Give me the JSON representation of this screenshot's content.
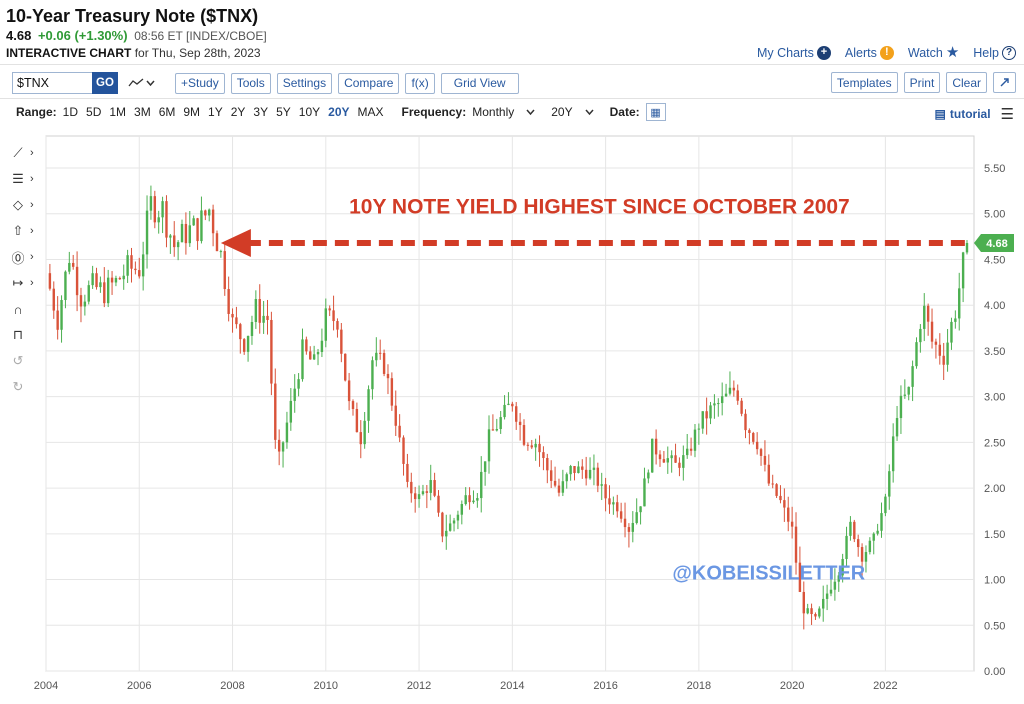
{
  "header": {
    "title": "10-Year Treasury Note ($TNX)",
    "last": "4.68",
    "change": "+0.06 (+1.30%)",
    "time_exchange": "08:56 ET [INDEX/CBOE]",
    "chart_label": "INTERACTIVE CHART",
    "chart_date": "for Thu, Sep 28th, 2023"
  },
  "top_links": {
    "my_charts": "My Charts",
    "alerts": "Alerts",
    "watch": "Watch",
    "help": "Help"
  },
  "toolbar": {
    "symbol": "$TNX",
    "go": "GO",
    "study": "+Study",
    "tools": "Tools",
    "settings": "Settings",
    "compare": "Compare",
    "fx": "f(x)",
    "grid_view": "Grid View",
    "templates": "Templates",
    "print": "Print",
    "clear": "Clear"
  },
  "rangebar": {
    "range_label": "Range:",
    "ranges": [
      "1D",
      "5D",
      "1M",
      "3M",
      "6M",
      "9M",
      "1Y",
      "2Y",
      "3Y",
      "5Y",
      "10Y",
      "20Y",
      "MAX"
    ],
    "active_range": "20Y",
    "frequency_label": "Frequency:",
    "frequency": "Monthly",
    "period": "20Y",
    "date_label": "Date:",
    "tutorial": "tutorial"
  },
  "colors": {
    "up": "#4caf50",
    "down": "#d9533a",
    "annotation": "#d23c26",
    "watermark": "#6b97e3",
    "last_price_badge": "#4caf50"
  },
  "icons": [
    "line-tool-icon",
    "fib-tool-icon",
    "shape-tool-icon",
    "arrow-tool-icon",
    "text-tool-icon",
    "measure-tool-icon",
    "magnet-icon",
    "lock-icon",
    "undo-icon",
    "redo-icon"
  ],
  "chart_data": {
    "type": "candlestick",
    "frequency": "monthly",
    "ylim": [
      0,
      5.85
    ],
    "y_ticks": [
      "0.00",
      "0.50",
      "1.00",
      "1.50",
      "2.00",
      "2.50",
      "3.00",
      "3.50",
      "4.00",
      "4.50",
      "5.00",
      "5.50"
    ],
    "x_ticks": [
      "2004",
      "2006",
      "2008",
      "2010",
      "2012",
      "2014",
      "2016",
      "2018",
      "2020",
      "2022"
    ],
    "x_range": [
      2004.0,
      2023.9
    ],
    "grid": true,
    "last_value": "4.68",
    "annotation": "10Y NOTE YIELD HIGHEST SINCE OCTOBER 2007",
    "annotation_level": 4.68,
    "annotation_from": 2007.75,
    "watermark": "@KOBEISSILETTER",
    "series": [
      {
        "x": [
          2004.0,
          2004.25,
          2004.5,
          2004.75,
          2005.0,
          2005.25,
          2005.5,
          2005.75,
          2006.0,
          2006.25,
          2006.5,
          2006.75,
          2007.0,
          2007.25,
          2007.5,
          2007.75,
          2008.0,
          2008.25,
          2008.5,
          2008.75,
          2008.95,
          2009.25,
          2009.5,
          2009.75,
          2010.0,
          2010.25,
          2010.5,
          2010.75,
          2011.0,
          2011.25,
          2011.5,
          2011.75,
          2012.0,
          2012.25,
          2012.5,
          2012.75,
          2013.0,
          2013.25,
          2013.5,
          2013.75,
          2014.0,
          2014.25,
          2014.5,
          2014.75,
          2015.0,
          2015.25,
          2015.5,
          2015.75,
          2016.0,
          2016.25,
          2016.5,
          2016.75,
          2017.0,
          2017.25,
          2017.5,
          2017.75,
          2018.0,
          2018.25,
          2018.5,
          2018.8,
          2019.0,
          2019.25,
          2019.5,
          2019.75,
          2020.0,
          2020.2,
          2020.5,
          2020.75,
          2021.0,
          2021.25,
          2021.5,
          2021.75,
          2022.0,
          2022.25,
          2022.5,
          2022.8,
          2023.0,
          2023.25,
          2023.5,
          2023.75
        ],
        "y": [
          4.35,
          3.85,
          4.55,
          4.1,
          4.2,
          4.15,
          4.25,
          4.4,
          4.4,
          5.1,
          5.05,
          4.65,
          4.8,
          4.85,
          5.05,
          4.55,
          3.8,
          3.6,
          3.95,
          3.85,
          2.2,
          2.9,
          3.5,
          3.35,
          3.85,
          3.85,
          2.9,
          2.55,
          3.4,
          3.35,
          2.75,
          2.0,
          1.9,
          2.05,
          1.5,
          1.65,
          1.9,
          1.95,
          2.55,
          2.75,
          2.95,
          2.55,
          2.5,
          2.2,
          1.95,
          2.2,
          2.2,
          2.15,
          1.9,
          1.8,
          1.55,
          1.85,
          2.45,
          2.35,
          2.25,
          2.35,
          2.7,
          2.85,
          2.95,
          3.1,
          2.7,
          2.5,
          2.05,
          1.85,
          1.55,
          0.7,
          0.55,
          0.85,
          1.1,
          1.6,
          1.25,
          1.45,
          1.85,
          2.85,
          3.05,
          4.0,
          3.6,
          3.45,
          3.95,
          4.68
        ]
      }
    ]
  }
}
